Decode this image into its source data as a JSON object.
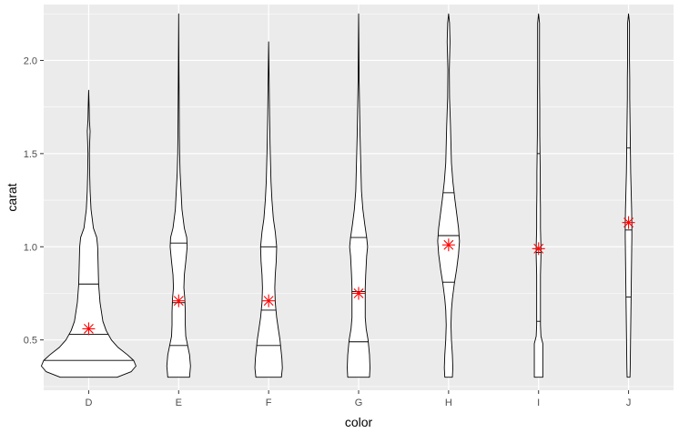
{
  "chart_data": {
    "type": "violin",
    "title": "",
    "xlabel": "color",
    "ylabel": "carat",
    "categories": [
      "D",
      "E",
      "F",
      "G",
      "H",
      "I",
      "J"
    ],
    "yticks": [
      0.5,
      1.0,
      1.5,
      2.0
    ],
    "ytick_labels": [
      "0.5",
      "1.0",
      "1.5",
      "2.0"
    ],
    "ylim": [
      0.23,
      2.3
    ],
    "grid": true,
    "legend": "none",
    "colors": {
      "panel": "#ebebeb",
      "grid_major": "#ffffff",
      "violin_fill": "#ffffff",
      "violin_stroke": "#000000",
      "mean_marker": "#ff0000",
      "tick": "#333333"
    },
    "series": [
      {
        "category": "D",
        "min": 0.3,
        "max": 1.84,
        "quantiles": [
          0.39,
          0.53,
          0.8
        ],
        "mean": 0.56,
        "density": [
          [
            0.3,
            0.6
          ],
          [
            0.33,
            0.9
          ],
          [
            0.36,
            1.0
          ],
          [
            0.39,
            0.95
          ],
          [
            0.42,
            0.82
          ],
          [
            0.46,
            0.62
          ],
          [
            0.5,
            0.48
          ],
          [
            0.55,
            0.37
          ],
          [
            0.6,
            0.3
          ],
          [
            0.7,
            0.24
          ],
          [
            0.8,
            0.21
          ],
          [
            0.9,
            0.2
          ],
          [
            1.0,
            0.19
          ],
          [
            1.05,
            0.17
          ],
          [
            1.1,
            0.1
          ],
          [
            1.2,
            0.05
          ],
          [
            1.3,
            0.03
          ],
          [
            1.4,
            0.02
          ],
          [
            1.5,
            0.015
          ],
          [
            1.55,
            0.02
          ],
          [
            1.62,
            0.03
          ],
          [
            1.68,
            0.015
          ],
          [
            1.75,
            0.01
          ],
          [
            1.84,
            0.0
          ]
        ]
      },
      {
        "category": "E",
        "min": 0.3,
        "max": 2.25,
        "quantiles": [
          0.47,
          0.7,
          1.02
        ],
        "mean": 0.71,
        "density": [
          [
            0.3,
            0.23
          ],
          [
            0.36,
            0.25
          ],
          [
            0.42,
            0.23
          ],
          [
            0.47,
            0.19
          ],
          [
            0.52,
            0.15
          ],
          [
            0.58,
            0.14
          ],
          [
            0.65,
            0.14
          ],
          [
            0.72,
            0.13
          ],
          [
            0.78,
            0.11
          ],
          [
            0.85,
            0.12
          ],
          [
            0.92,
            0.15
          ],
          [
            1.0,
            0.18
          ],
          [
            1.05,
            0.17
          ],
          [
            1.1,
            0.12
          ],
          [
            1.2,
            0.07
          ],
          [
            1.3,
            0.05
          ],
          [
            1.4,
            0.03
          ],
          [
            1.5,
            0.02
          ],
          [
            1.6,
            0.015
          ],
          [
            1.8,
            0.01
          ],
          [
            2.0,
            0.005
          ],
          [
            2.25,
            0.0
          ]
        ]
      },
      {
        "category": "F",
        "min": 0.3,
        "max": 2.1,
        "quantiles": [
          0.47,
          0.66,
          1.0
        ],
        "mean": 0.71,
        "density": [
          [
            0.3,
            0.27
          ],
          [
            0.35,
            0.29
          ],
          [
            0.4,
            0.28
          ],
          [
            0.45,
            0.26
          ],
          [
            0.5,
            0.24
          ],
          [
            0.55,
            0.21
          ],
          [
            0.62,
            0.17
          ],
          [
            0.7,
            0.14
          ],
          [
            0.78,
            0.13
          ],
          [
            0.85,
            0.14
          ],
          [
            0.92,
            0.16
          ],
          [
            1.0,
            0.17
          ],
          [
            1.08,
            0.14
          ],
          [
            1.15,
            0.1
          ],
          [
            1.25,
            0.07
          ],
          [
            1.35,
            0.05
          ],
          [
            1.45,
            0.04
          ],
          [
            1.55,
            0.03
          ],
          [
            1.7,
            0.02
          ],
          [
            1.9,
            0.01
          ],
          [
            2.1,
            0.0
          ]
        ]
      },
      {
        "category": "G",
        "min": 0.3,
        "max": 2.25,
        "quantiles": [
          0.49,
          0.76,
          1.05
        ],
        "mean": 0.75,
        "density": [
          [
            0.3,
            0.23
          ],
          [
            0.35,
            0.24
          ],
          [
            0.42,
            0.23
          ],
          [
            0.5,
            0.2
          ],
          [
            0.56,
            0.16
          ],
          [
            0.62,
            0.14
          ],
          [
            0.7,
            0.14
          ],
          [
            0.78,
            0.14
          ],
          [
            0.85,
            0.15
          ],
          [
            0.95,
            0.17
          ],
          [
            1.0,
            0.19
          ],
          [
            1.05,
            0.17
          ],
          [
            1.12,
            0.13
          ],
          [
            1.2,
            0.09
          ],
          [
            1.3,
            0.06
          ],
          [
            1.4,
            0.05
          ],
          [
            1.5,
            0.04
          ],
          [
            1.6,
            0.03
          ],
          [
            1.75,
            0.02
          ],
          [
            1.9,
            0.01
          ],
          [
            2.1,
            0.005
          ],
          [
            2.25,
            0.0
          ]
        ]
      },
      {
        "category": "H",
        "min": 0.3,
        "max": 2.25,
        "quantiles": [
          0.81,
          1.06,
          1.29
        ],
        "mean": 1.01,
        "density": [
          [
            0.3,
            0.08
          ],
          [
            0.35,
            0.09
          ],
          [
            0.42,
            0.08
          ],
          [
            0.5,
            0.06
          ],
          [
            0.58,
            0.05
          ],
          [
            0.66,
            0.06
          ],
          [
            0.72,
            0.08
          ],
          [
            0.8,
            0.12
          ],
          [
            0.88,
            0.17
          ],
          [
            0.96,
            0.21
          ],
          [
            1.03,
            0.23
          ],
          [
            1.1,
            0.21
          ],
          [
            1.18,
            0.17
          ],
          [
            1.26,
            0.13
          ],
          [
            1.35,
            0.09
          ],
          [
            1.45,
            0.06
          ],
          [
            1.55,
            0.05
          ],
          [
            1.65,
            0.04
          ],
          [
            1.8,
            0.02
          ],
          [
            1.95,
            0.015
          ],
          [
            2.1,
            0.03
          ],
          [
            2.2,
            0.02
          ],
          [
            2.25,
            0.0
          ]
        ]
      },
      {
        "category": "I",
        "min": 0.3,
        "max": 2.25,
        "quantiles": [
          0.6,
          0.97,
          1.5
        ],
        "mean": 0.99,
        "density": [
          [
            0.3,
            0.09
          ],
          [
            0.35,
            0.09
          ],
          [
            0.42,
            0.09
          ],
          [
            0.48,
            0.09
          ],
          [
            0.52,
            0.05
          ],
          [
            0.58,
            0.04
          ],
          [
            0.65,
            0.04
          ],
          [
            0.75,
            0.04
          ],
          [
            0.85,
            0.04
          ],
          [
            0.95,
            0.05
          ],
          [
            1.0,
            0.05
          ],
          [
            1.1,
            0.04
          ],
          [
            1.2,
            0.04
          ],
          [
            1.3,
            0.035
          ],
          [
            1.4,
            0.035
          ],
          [
            1.5,
            0.03
          ],
          [
            1.6,
            0.025
          ],
          [
            1.75,
            0.025
          ],
          [
            1.9,
            0.02
          ],
          [
            2.05,
            0.02
          ],
          [
            2.15,
            0.02
          ],
          [
            2.2,
            0.02
          ],
          [
            2.25,
            0.0
          ]
        ]
      },
      {
        "category": "J",
        "min": 0.3,
        "max": 2.25,
        "quantiles": [
          0.73,
          1.09,
          1.53
        ],
        "mean": 1.13,
        "density": [
          [
            0.3,
            0.03
          ],
          [
            0.35,
            0.035
          ],
          [
            0.45,
            0.04
          ],
          [
            0.55,
            0.045
          ],
          [
            0.65,
            0.05
          ],
          [
            0.75,
            0.055
          ],
          [
            0.85,
            0.06
          ],
          [
            0.95,
            0.065
          ],
          [
            1.05,
            0.07
          ],
          [
            1.12,
            0.07
          ],
          [
            1.2,
            0.065
          ],
          [
            1.3,
            0.055
          ],
          [
            1.4,
            0.045
          ],
          [
            1.5,
            0.04
          ],
          [
            1.6,
            0.035
          ],
          [
            1.7,
            0.03
          ],
          [
            1.8,
            0.025
          ],
          [
            1.9,
            0.025
          ],
          [
            2.0,
            0.02
          ],
          [
            2.1,
            0.02
          ],
          [
            2.2,
            0.02
          ],
          [
            2.25,
            0.0
          ]
        ]
      }
    ]
  }
}
